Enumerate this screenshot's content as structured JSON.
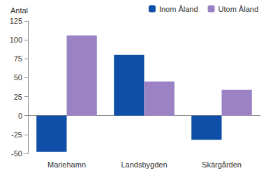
{
  "chart_data": {
    "type": "bar",
    "y_label": "Antal",
    "categories": [
      "Mariehamn",
      "Landsbygden",
      "Skärgården"
    ],
    "series": [
      {
        "name": "Inom Åland",
        "color": "#0f4fa8",
        "values": [
          -48,
          80,
          -32
        ]
      },
      {
        "name": "Utom Åland",
        "color": "#9a82c4",
        "values": [
          106,
          45,
          34
        ]
      }
    ],
    "ylim": [
      -50,
      125
    ],
    "yticks": [
      -50,
      -25,
      0,
      25,
      50,
      75,
      100,
      125
    ],
    "grid": false,
    "legend": "top-right"
  }
}
